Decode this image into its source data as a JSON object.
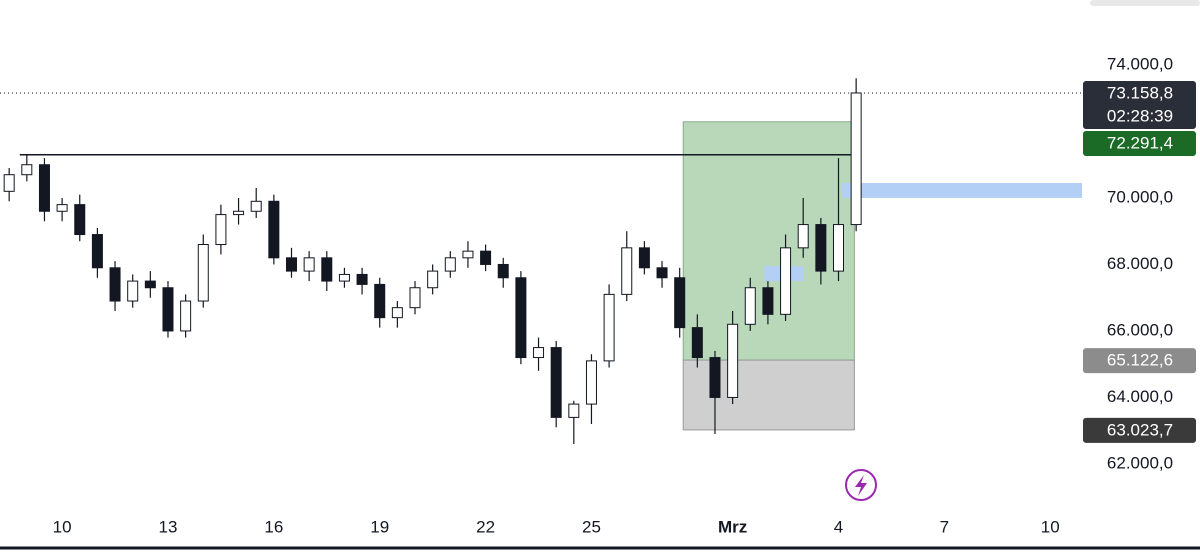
{
  "chart_data": {
    "type": "candlestick",
    "x": [
      -1.5,
      -1,
      -0.5,
      0,
      0.5,
      1,
      1.5,
      2,
      2.5,
      3,
      3.5,
      4,
      4.5,
      5,
      5.5,
      6,
      6.5,
      7,
      7.5,
      8,
      8.5,
      9,
      9.5,
      10,
      10.5,
      11,
      11.5,
      12,
      12.5,
      13,
      13.5,
      14,
      14.5,
      15,
      15.5,
      16,
      16.5,
      17,
      17.5,
      18,
      18.5,
      19,
      19.5,
      20,
      20.5,
      21,
      21.5,
      22,
      22.5
    ],
    "open": [
      70200,
      70700,
      71000,
      69600,
      69800,
      68900,
      67900,
      66900,
      67500,
      67300,
      66000,
      66900,
      68600,
      69500,
      69600,
      69900,
      68200,
      67800,
      68200,
      67500,
      67700,
      67400,
      66400,
      66700,
      67300,
      67800,
      68200,
      68400,
      68000,
      67600,
      65200,
      65500,
      63400,
      63800,
      65100,
      67100,
      68500,
      67900,
      67600,
      66100,
      65200,
      64000,
      66200,
      67300,
      66500,
      68500,
      69200,
      67800,
      69200
    ],
    "high": [
      70900,
      71300,
      71200,
      70000,
      70100,
      69100,
      68100,
      67700,
      67800,
      67500,
      67100,
      68900,
      69800,
      70000,
      70300,
      70100,
      68500,
      68400,
      68400,
      67900,
      67900,
      67600,
      66900,
      67500,
      68000,
      68400,
      68700,
      68600,
      68200,
      67800,
      65800,
      65700,
      63900,
      65300,
      67400,
      69000,
      68700,
      68100,
      67900,
      66500,
      65400,
      66600,
      67600,
      67500,
      68900,
      70000,
      69400,
      71200,
      73600
    ],
    "low": [
      69900,
      70500,
      69300,
      69300,
      68700,
      67600,
      66600,
      66700,
      67000,
      65800,
      65800,
      66700,
      68300,
      69200,
      69400,
      68000,
      67600,
      67500,
      67200,
      67300,
      67100,
      66100,
      66100,
      66500,
      67100,
      67600,
      67900,
      67800,
      67300,
      65000,
      64800,
      63100,
      62600,
      63200,
      64900,
      66900,
      67700,
      67300,
      65800,
      64900,
      62900,
      63800,
      66000,
      66200,
      66300,
      68200,
      67400,
      67500,
      69000
    ],
    "close": [
      70700,
      71000,
      69600,
      69800,
      68900,
      67900,
      66900,
      67500,
      67300,
      66000,
      66900,
      68600,
      69500,
      69600,
      69900,
      68200,
      67800,
      68200,
      67500,
      67700,
      67400,
      66400,
      66700,
      67300,
      67800,
      68200,
      68400,
      68000,
      67600,
      65200,
      65500,
      63400,
      63800,
      65100,
      67100,
      68500,
      67900,
      67600,
      66100,
      65200,
      64000,
      66200,
      67300,
      66500,
      68500,
      69200,
      67800,
      69200,
      73158.8
    ],
    "up_color": "#ffffff",
    "down_color": "#131722",
    "xlim": [
      -1.76,
      28.9
    ],
    "ylim": [
      60915,
      75955
    ],
    "xticks": [
      {
        "value": 0,
        "label": "10"
      },
      {
        "value": 3,
        "label": "13"
      },
      {
        "value": 6,
        "label": "16"
      },
      {
        "value": 9,
        "label": "19"
      },
      {
        "value": 12,
        "label": "22"
      },
      {
        "value": 15,
        "label": "25"
      },
      {
        "value": 19,
        "label": "Mrz"
      },
      {
        "value": 22,
        "label": "4"
      },
      {
        "value": 25,
        "label": "7"
      },
      {
        "value": 28,
        "label": "10"
      }
    ],
    "yticks": [
      {
        "value": 62000,
        "label": "62.000,0"
      },
      {
        "value": 64000,
        "label": "64.000,0"
      },
      {
        "value": 66000,
        "label": "66.000,0"
      },
      {
        "value": 68000,
        "label": "68.000,0"
      },
      {
        "value": 70000,
        "label": "70.000,0"
      },
      {
        "value": 74000,
        "label": "74.000,0"
      }
    ],
    "last_price": {
      "value": 73158.8,
      "label": "73.158,8"
    },
    "countdown": "02:28:39",
    "horizontal_line": {
      "value": 71300,
      "x_from": -1.2
    },
    "position": {
      "x_from": 17.6,
      "x_to": 22.45,
      "target": {
        "value": 72291.4,
        "label": "72.291,4"
      },
      "entry": {
        "value": 65122.6,
        "label": "65.122,6"
      },
      "stop": {
        "value": 63023.7,
        "label": "63.023,7"
      }
    },
    "zones": [
      {
        "from": 70000,
        "to": 70450,
        "x_from": 22.1,
        "x_to": 28.9
      },
      {
        "from": 67500,
        "to": 67950,
        "x_from": 19.9,
        "x_to": 21.0
      }
    ]
  }
}
